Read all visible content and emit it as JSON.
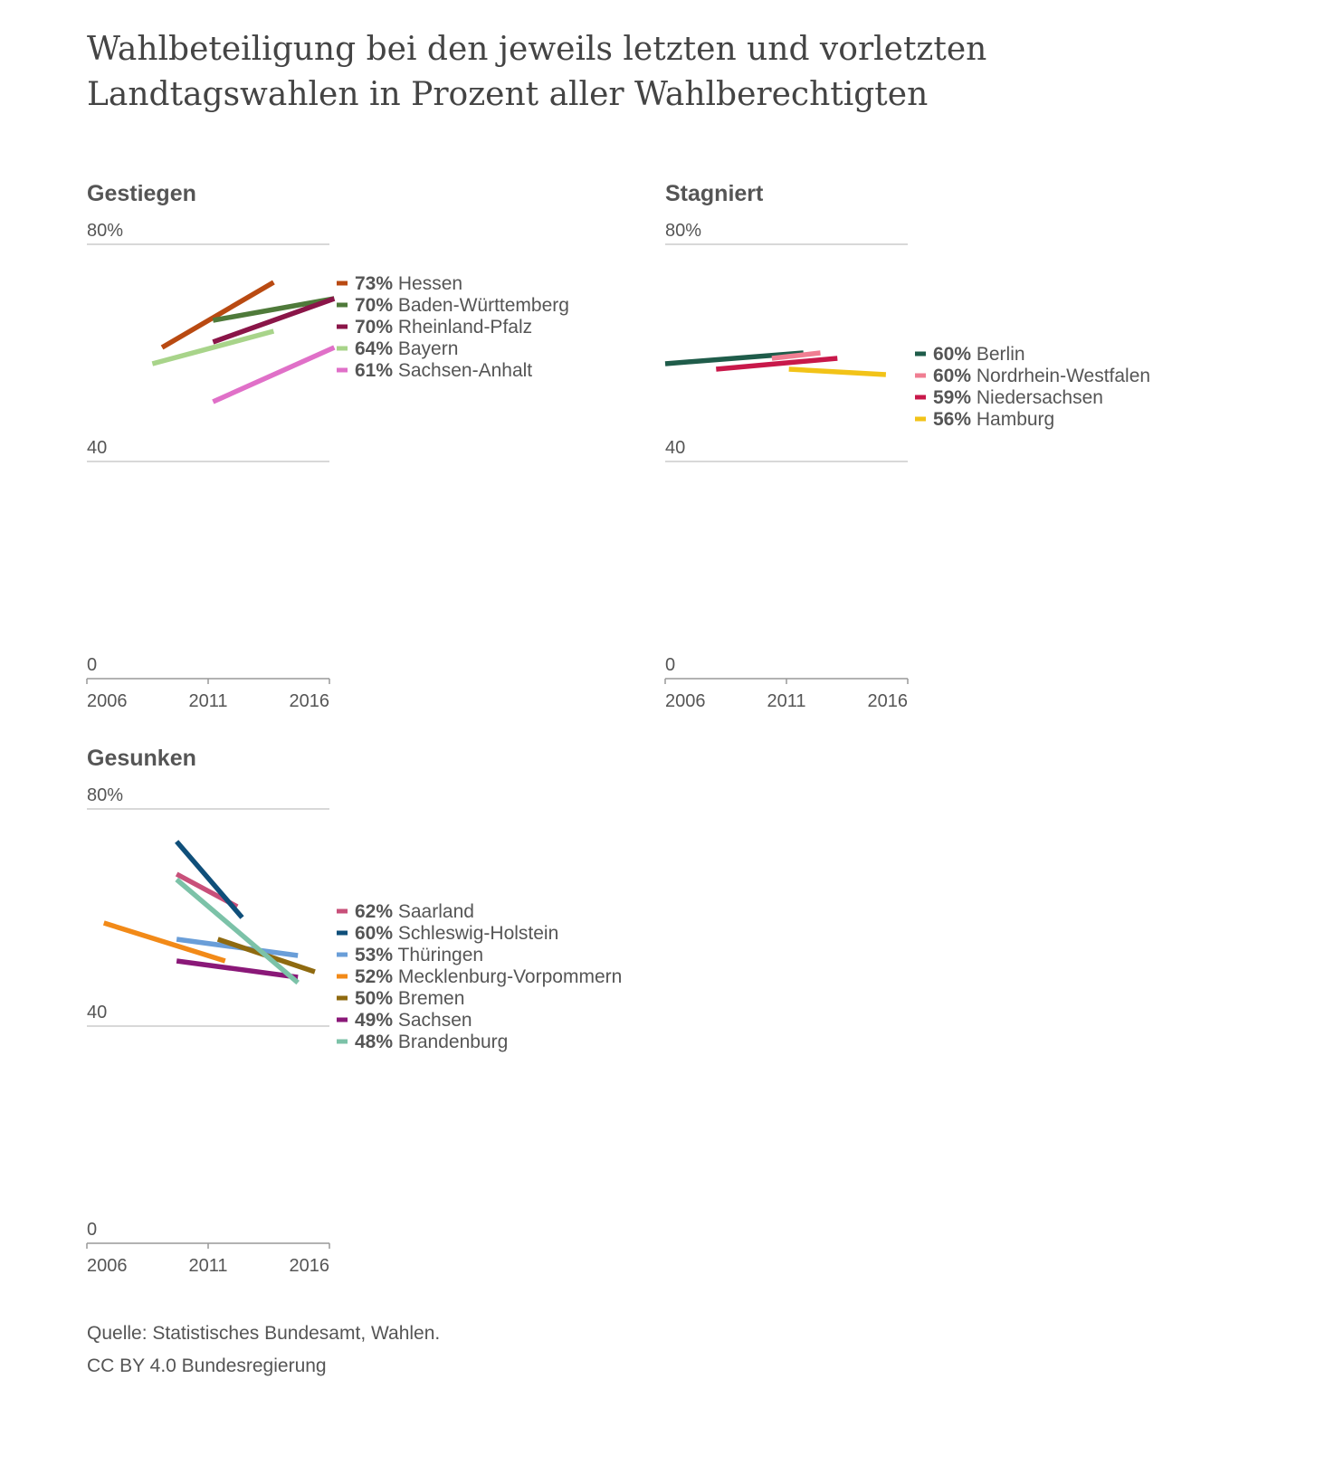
{
  "title": "Wahlbeteiligung bei den jeweils letzten und vorletzten Landtagswahlen in Prozent aller Wahlberechtigten",
  "footer": {
    "source": "Quelle: Statistisches Bundesamt, Wahlen.",
    "license": "CC BY 4.0 Bundesregierung"
  },
  "chart_data": [
    {
      "type": "line",
      "title": "Gestiegen",
      "xlim": [
        2006,
        2016
      ],
      "ylim": [
        0,
        80
      ],
      "x_ticks": [
        "2006",
        "2011",
        "2016"
      ],
      "y_ticks": [
        "0",
        "40",
        "80%"
      ],
      "grid": true,
      "legend": "right",
      "series": [
        {
          "name": "Hessen",
          "value_label": "73%",
          "color": "#b94a12",
          "points": [
            [
              2009.1,
              61
            ],
            [
              2013.7,
              73
            ]
          ]
        },
        {
          "name": "Baden-Württemberg",
          "value_label": "70%",
          "color": "#4f7a3a",
          "points": [
            [
              2011.2,
              66
            ],
            [
              2016.2,
              70
            ]
          ]
        },
        {
          "name": "Rheinland-Pfalz",
          "value_label": "70%",
          "color": "#8a1548",
          "points": [
            [
              2011.2,
              62
            ],
            [
              2016.2,
              70
            ]
          ]
        },
        {
          "name": "Bayern",
          "value_label": "64%",
          "color": "#a8d48a",
          "points": [
            [
              2008.7,
              58
            ],
            [
              2013.7,
              64
            ]
          ]
        },
        {
          "name": "Sachsen-Anhalt",
          "value_label": "61%",
          "color": "#e070c8",
          "points": [
            [
              2011.2,
              51
            ],
            [
              2016.2,
              61
            ]
          ]
        }
      ]
    },
    {
      "type": "line",
      "title": "Stagniert",
      "xlim": [
        2006,
        2016
      ],
      "ylim": [
        0,
        80
      ],
      "x_ticks": [
        "2006",
        "2011",
        "2016"
      ],
      "y_ticks": [
        "0",
        "40",
        "80%"
      ],
      "grid": true,
      "legend": "right",
      "series": [
        {
          "name": "Berlin",
          "value_label": "60%",
          "color": "#1f5c4a",
          "points": [
            [
              2006.0,
              58
            ],
            [
              2011.7,
              60
            ]
          ]
        },
        {
          "name": "Nordrhein-Westfalen",
          "value_label": "60%",
          "color": "#f07e92",
          "points": [
            [
              2010.4,
              59
            ],
            [
              2012.4,
              60
            ]
          ]
        },
        {
          "name": "Niedersachsen",
          "value_label": "59%",
          "color": "#c8184a",
          "points": [
            [
              2008.1,
              57
            ],
            [
              2013.1,
              59
            ]
          ]
        },
        {
          "name": "Hamburg",
          "value_label": "56%",
          "color": "#f2c318",
          "points": [
            [
              2011.1,
              57
            ],
            [
              2015.1,
              56
            ]
          ]
        }
      ]
    },
    {
      "type": "line",
      "title": "Gesunken",
      "xlim": [
        2006,
        2016
      ],
      "ylim": [
        0,
        80
      ],
      "x_ticks": [
        "2006",
        "2011",
        "2016"
      ],
      "y_ticks": [
        "0",
        "40",
        "80%"
      ],
      "grid": true,
      "legend": "right",
      "series": [
        {
          "name": "Saarland",
          "value_label": "62%",
          "color": "#c8507a",
          "points": [
            [
              2009.7,
              68
            ],
            [
              2012.2,
              62
            ]
          ]
        },
        {
          "name": "Schleswig-Holstein",
          "value_label": "60%",
          "color": "#0f4f7a",
          "points": [
            [
              2009.7,
              74
            ],
            [
              2012.4,
              60
            ]
          ]
        },
        {
          "name": "Thüringen",
          "value_label": "53%",
          "color": "#6a9ed8",
          "points": [
            [
              2009.7,
              56
            ],
            [
              2014.7,
              53
            ]
          ]
        },
        {
          "name": "Mecklenburg-Vorpommern",
          "value_label": "52%",
          "color": "#f28a18",
          "points": [
            [
              2006.7,
              59
            ],
            [
              2011.7,
              52
            ]
          ]
        },
        {
          "name": "Bremen",
          "value_label": "50%",
          "color": "#8f6a10",
          "points": [
            [
              2011.4,
              56
            ],
            [
              2015.4,
              50
            ]
          ]
        },
        {
          "name": "Sachsen",
          "value_label": "49%",
          "color": "#8a1878",
          "points": [
            [
              2009.7,
              52
            ],
            [
              2014.7,
              49
            ]
          ]
        },
        {
          "name": "Brandenburg",
          "value_label": "48%",
          "color": "#7cc2a8",
          "points": [
            [
              2009.7,
              67
            ],
            [
              2014.7,
              48
            ]
          ]
        }
      ]
    }
  ]
}
